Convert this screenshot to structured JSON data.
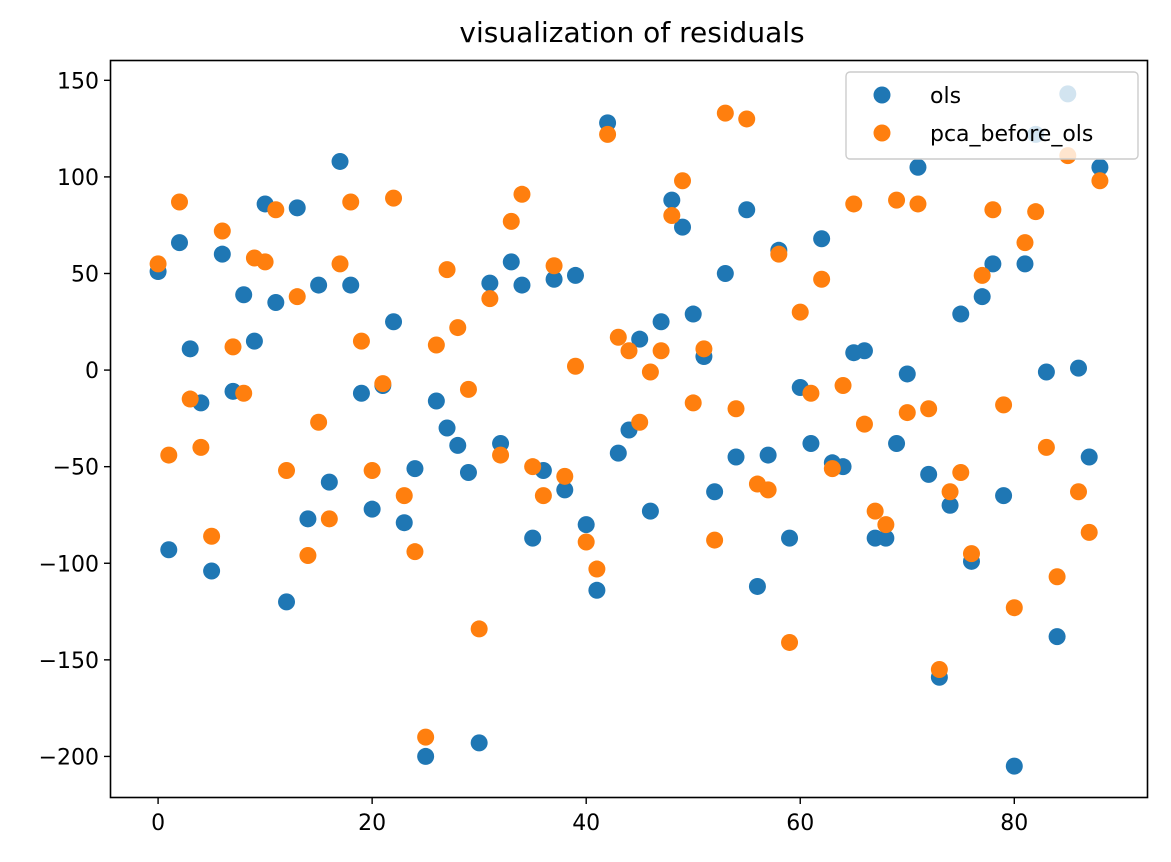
{
  "chart_data": {
    "type": "scatter",
    "title": "visualization of residuals",
    "xlabel": "",
    "ylabel": "",
    "xlim": [
      -4.4,
      92.4
    ],
    "ylim": [
      -221,
      160
    ],
    "xticks": [
      0,
      20,
      40,
      60,
      80
    ],
    "yticks": [
      150,
      100,
      50,
      0,
      -50,
      -100,
      -150,
      -200
    ],
    "xtick_labels": [
      "0",
      "20",
      "40",
      "60",
      "80"
    ],
    "ytick_labels": [
      "150",
      "100",
      "50",
      "0",
      "−50",
      "−100",
      "−150",
      "−200"
    ],
    "grid": false,
    "legend_position": "top-right",
    "series": [
      {
        "name": "ols",
        "color": "#1f77b4",
        "x": [
          0,
          1,
          2,
          3,
          4,
          5,
          6,
          7,
          8,
          9,
          10,
          11,
          12,
          13,
          14,
          15,
          16,
          17,
          18,
          19,
          20,
          21,
          22,
          23,
          24,
          25,
          26,
          27,
          28,
          29,
          30,
          31,
          32,
          33,
          34,
          35,
          36,
          37,
          38,
          39,
          40,
          41,
          42,
          43,
          44,
          45,
          46,
          47,
          48,
          49,
          50,
          51,
          52,
          53,
          54,
          55,
          56,
          57,
          58,
          59,
          60,
          61,
          62,
          63,
          64,
          65,
          66,
          67,
          68,
          69,
          70,
          71,
          72,
          73,
          74,
          75,
          76,
          77,
          78,
          79,
          80,
          81,
          82,
          83,
          84,
          85,
          86,
          87,
          88
        ],
        "y": [
          51,
          -93,
          66,
          11,
          -17,
          -104,
          60,
          -11,
          39,
          15,
          86,
          35,
          -120,
          84,
          -77,
          44,
          -58,
          108,
          44,
          -12,
          -72,
          -8,
          25,
          -79,
          -51,
          -200,
          -16,
          -30,
          -39,
          -53,
          -193,
          45,
          -38,
          56,
          44,
          -87,
          -52,
          47,
          -62,
          49,
          -80,
          -114,
          128,
          -43,
          -31,
          16,
          -73,
          25,
          88,
          74,
          29,
          7,
          -63,
          50,
          -45,
          83,
          -112,
          -44,
          62,
          -87,
          -9,
          -38,
          68,
          -48,
          -50,
          9,
          10,
          -87,
          -87,
          -38,
          -2,
          105,
          -54,
          -159,
          -70,
          29,
          -99,
          38,
          55,
          -65,
          -205,
          55,
          122,
          -1,
          -138,
          143,
          1,
          -45,
          105
        ]
      },
      {
        "name": "pca_before_ols",
        "color": "#ff7f0e",
        "x": [
          0,
          1,
          2,
          3,
          4,
          5,
          6,
          7,
          8,
          9,
          10,
          11,
          12,
          13,
          14,
          15,
          16,
          17,
          18,
          19,
          20,
          21,
          22,
          23,
          24,
          25,
          26,
          27,
          28,
          29,
          30,
          31,
          32,
          33,
          34,
          35,
          36,
          37,
          38,
          39,
          40,
          41,
          42,
          43,
          44,
          45,
          46,
          47,
          48,
          49,
          50,
          51,
          52,
          53,
          54,
          55,
          56,
          57,
          58,
          59,
          60,
          61,
          62,
          63,
          64,
          65,
          66,
          67,
          68,
          69,
          70,
          71,
          72,
          73,
          74,
          75,
          76,
          77,
          78,
          79,
          80,
          81,
          82,
          83,
          84,
          85,
          86,
          87,
          88
        ],
        "y": [
          55,
          -44,
          87,
          -15,
          -40,
          -86,
          72,
          12,
          -12,
          58,
          56,
          83,
          -52,
          38,
          -96,
          -27,
          -77,
          55,
          87,
          15,
          -52,
          -7,
          89,
          -65,
          -94,
          -190,
          13,
          52,
          22,
          -10,
          -134,
          37,
          -44,
          77,
          91,
          -50,
          -65,
          54,
          -55,
          2,
          -89,
          -103,
          122,
          17,
          10,
          -27,
          -1,
          10,
          80,
          98,
          -17,
          11,
          -88,
          133,
          -20,
          130,
          -59,
          -62,
          60,
          -141,
          30,
          -12,
          47,
          -51,
          -8,
          86,
          -28,
          -73,
          -80,
          88,
          -22,
          86,
          -20,
          -155,
          -63,
          -53,
          -95,
          49,
          83,
          -18,
          -123,
          66,
          82,
          -40,
          -107,
          111,
          -63,
          -84,
          98
        ]
      }
    ]
  }
}
